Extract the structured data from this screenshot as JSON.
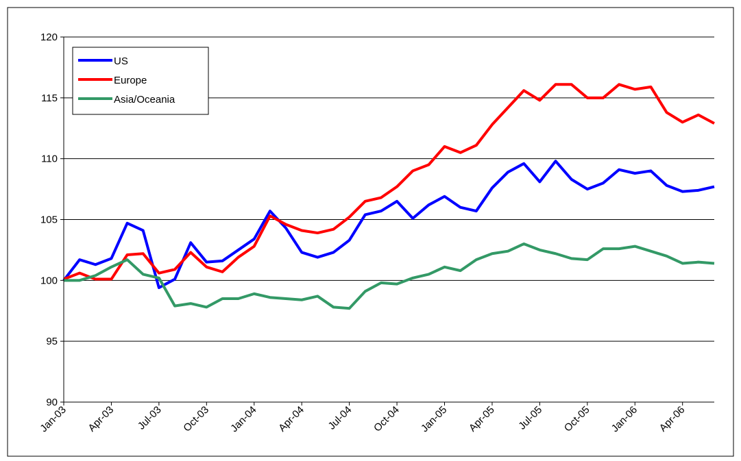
{
  "chart_data": {
    "type": "line",
    "categories": [
      "Jan-03",
      null,
      null,
      "Apr-03",
      null,
      null,
      "Jul-03",
      null,
      null,
      "Oct-03",
      null,
      null,
      "Jan-04",
      null,
      null,
      "Apr-04",
      null,
      null,
      "Jul-04",
      null,
      null,
      "Oct-04",
      null,
      null,
      "Jan-05",
      null,
      null,
      "Apr-05",
      null,
      null,
      "Jul-05",
      null,
      null,
      "Oct-05",
      null,
      null,
      "Jan-06",
      null,
      null,
      "Apr-06",
      null,
      null
    ],
    "series": [
      {
        "name": "US",
        "color": "#0000ff",
        "values": [
          100.0,
          101.7,
          101.3,
          101.8,
          104.7,
          104.1,
          99.4,
          100.1,
          103.1,
          101.5,
          101.6,
          102.5,
          103.4,
          105.7,
          104.3,
          102.3,
          101.9,
          102.3,
          103.3,
          105.4,
          105.7,
          106.5,
          105.1,
          106.2,
          106.9,
          106.0,
          105.7,
          107.6,
          108.9,
          109.6,
          108.1,
          109.8,
          108.3,
          107.5,
          108.0,
          109.1,
          108.8,
          109.0,
          107.8,
          107.3,
          107.4,
          107.7
        ]
      },
      {
        "name": "Europe",
        "color": "#ff0000",
        "values": [
          100.1,
          100.6,
          100.1,
          100.1,
          102.1,
          102.2,
          100.6,
          100.9,
          102.3,
          101.1,
          100.7,
          101.9,
          102.8,
          105.3,
          104.6,
          104.1,
          103.9,
          104.2,
          105.2,
          106.5,
          106.8,
          107.7,
          109.0,
          109.5,
          111.0,
          110.5,
          111.1,
          112.8,
          114.2,
          115.6,
          114.8,
          116.1,
          116.1,
          115.0,
          115.0,
          116.1,
          115.7,
          115.9,
          113.8,
          113.0,
          113.6,
          112.9
        ]
      },
      {
        "name": "Asia/Oceania",
        "color": "#339966",
        "values": [
          100.0,
          100.0,
          100.4,
          101.1,
          101.7,
          100.5,
          100.2,
          97.9,
          98.1,
          97.8,
          98.5,
          98.5,
          98.9,
          98.6,
          98.5,
          98.4,
          98.7,
          97.8,
          97.7,
          99.1,
          99.8,
          99.7,
          100.2,
          100.5,
          101.1,
          100.8,
          101.7,
          102.2,
          102.4,
          103.0,
          102.5,
          102.2,
          101.8,
          101.7,
          102.6,
          102.6,
          102.8,
          102.4,
          102.0,
          101.4,
          101.5,
          101.4
        ]
      }
    ],
    "ylim": [
      90,
      120
    ],
    "yticks": [
      90,
      95,
      100,
      105,
      110,
      115,
      120
    ],
    "grid": true,
    "legend": "top-left"
  }
}
